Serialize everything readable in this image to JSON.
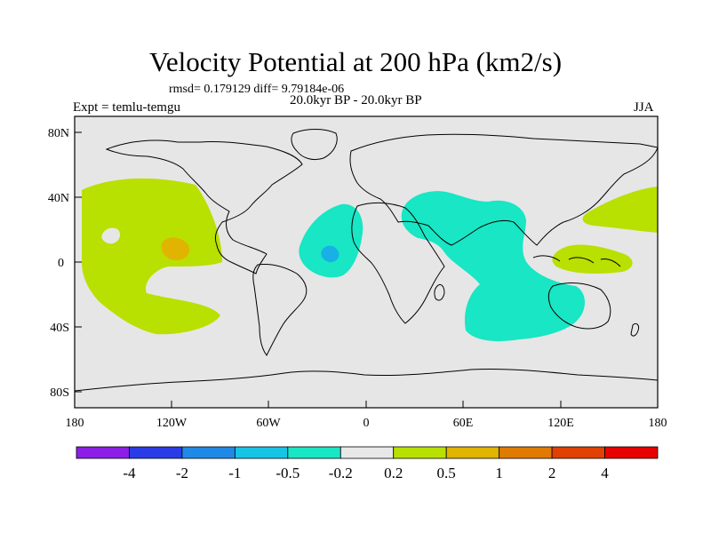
{
  "title": "Velocity Potential at 200 hPa (km2/s)",
  "subtitle": "rmsd= 0.179129 diff= 9.79184e-06",
  "left_label": "Expt = temlu-temgu",
  "center_label": "20.0kyr BP - 20.0kyr BP",
  "right_label": "JJA",
  "axes": {
    "lon_ticks": [
      "180",
      "120W",
      "60W",
      "0",
      "60E",
      "120E",
      "180"
    ],
    "lat_ticks": [
      "80N",
      "40N",
      "0",
      "40S",
      "80S"
    ]
  },
  "colorbar": {
    "colors": [
      "#8c1ee6",
      "#2a3ce6",
      "#1f8ae6",
      "#18c4e6",
      "#18e6c4",
      "#e8e8e8",
      "#b8e000",
      "#e0b400",
      "#e07a00",
      "#e04000",
      "#e60000"
    ],
    "labels": [
      "-4",
      "-2",
      "-1",
      "-0.5",
      "-0.2",
      "0.2",
      "0.5",
      "1",
      "2",
      "4"
    ]
  },
  "colors": {
    "ocean": "#e6e6e6",
    "positive_light": "#b8e000",
    "positive_mid": "#e0b400",
    "negative_light": "#18e6c4",
    "negative_mid": "#18b0e6"
  }
}
